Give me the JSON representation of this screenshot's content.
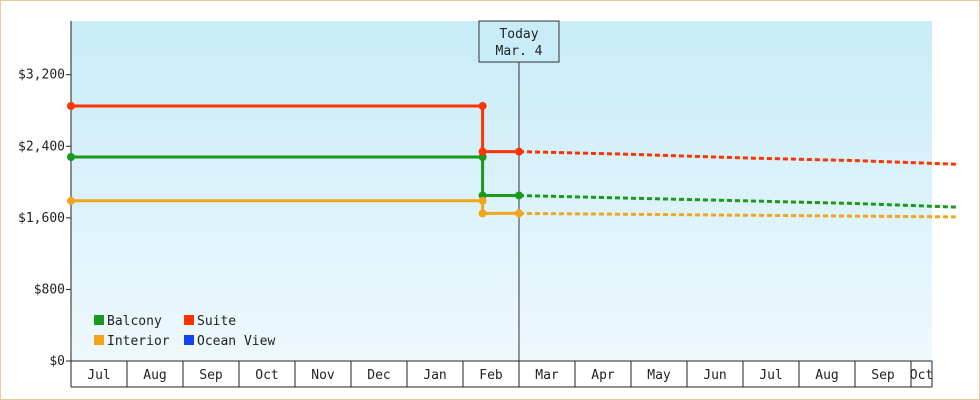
{
  "chart_data": {
    "type": "line",
    "x_axis": {
      "ticks": [
        "Jul",
        "Aug",
        "Sep",
        "Oct",
        "Nov",
        "Dec",
        "Jan",
        "Feb",
        "Mar",
        "Apr",
        "May",
        "Jun",
        "Jul",
        "Aug",
        "Sep",
        "Oct"
      ]
    },
    "y_axis": {
      "min": 0,
      "max": 3200,
      "range": [
        0,
        3800
      ],
      "step": 800,
      "tick_labels": [
        "$0",
        "$800",
        "$1,600",
        "$2,400",
        "$3,200"
      ]
    },
    "grid": false,
    "legend": {
      "placement": "bottom-left"
    },
    "today_marker": {
      "label_line1": "Today",
      "label_line2": "Mar. 4",
      "x_month": 8.0
    },
    "series": [
      {
        "name": "Balcony",
        "color": "#1a9a1a",
        "history": [
          [
            0,
            2280
          ],
          [
            7.35,
            2280
          ],
          [
            7.35,
            1850
          ],
          [
            8.0,
            1850
          ]
        ],
        "markers": [
          [
            0,
            2280
          ],
          [
            7.35,
            2280
          ],
          [
            7.35,
            1850
          ],
          [
            8.0,
            1850
          ]
        ],
        "forecast": [
          [
            8.0,
            1850
          ],
          [
            10,
            1820
          ],
          [
            12,
            1790
          ],
          [
            14,
            1760
          ],
          [
            15.8,
            1720
          ]
        ]
      },
      {
        "name": "Suite",
        "color": "#ff3300",
        "history": [
          [
            0,
            2850
          ],
          [
            7.35,
            2850
          ],
          [
            7.35,
            2340
          ],
          [
            8.0,
            2340
          ]
        ],
        "markers": [
          [
            0,
            2850
          ],
          [
            7.35,
            2850
          ],
          [
            7.35,
            2340
          ],
          [
            8.0,
            2340
          ]
        ],
        "forecast": [
          [
            8.0,
            2340
          ],
          [
            10,
            2310
          ],
          [
            12,
            2270
          ],
          [
            14,
            2240
          ],
          [
            15.8,
            2200
          ]
        ]
      },
      {
        "name": "Interior",
        "color": "#f2a51c",
        "history": [
          [
            0,
            1790
          ],
          [
            7.35,
            1790
          ],
          [
            7.35,
            1650
          ],
          [
            8.0,
            1650
          ]
        ],
        "markers": [
          [
            0,
            1790
          ],
          [
            7.35,
            1790
          ],
          [
            7.35,
            1650
          ],
          [
            8.0,
            1650
          ]
        ],
        "forecast": [
          [
            8.0,
            1650
          ],
          [
            10,
            1640
          ],
          [
            12,
            1630
          ],
          [
            14,
            1620
          ],
          [
            15.8,
            1610
          ]
        ]
      },
      {
        "name": "Ocean View",
        "color": "#1144ee",
        "history": [],
        "markers": [],
        "forecast": []
      }
    ],
    "legend_order": [
      "Balcony",
      "Suite",
      "Interior",
      "Ocean View"
    ],
    "plot_colors": {
      "top": "#c8ecf8",
      "bottom": "#eef8fd",
      "axis": "#222222"
    }
  }
}
